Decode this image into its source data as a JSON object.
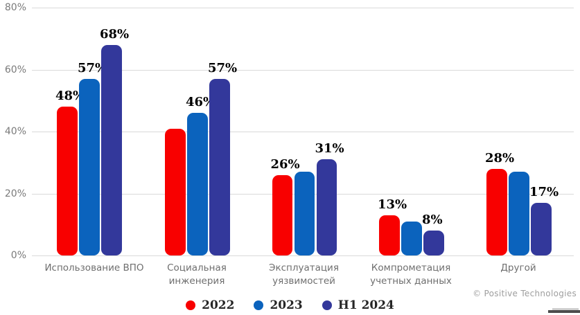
{
  "chart_data": {
    "type": "bar",
    "title": "",
    "categories": [
      "Использование ВПО",
      "Социальная инженерия",
      "Эксплуатация уязвимостей",
      "Компрометация учетных данных",
      "Другой"
    ],
    "category_lines": [
      [
        "Использование ВПО"
      ],
      [
        "Социальная",
        "инженерия"
      ],
      [
        "Эксплуатация",
        "уязвимостей"
      ],
      [
        "Компрометация",
        "учетных данных"
      ],
      [
        "Другой"
      ]
    ],
    "series": [
      {
        "name": "2022",
        "color": "#f80000",
        "values": [
          48,
          41,
          26,
          13,
          28
        ],
        "visible_labels": [
          "48%",
          "",
          "26%",
          "13%",
          "28%"
        ]
      },
      {
        "name": "2023",
        "color": "#0b63bd",
        "values": [
          57,
          46,
          27,
          11,
          27
        ],
        "visible_labels": [
          "57%",
          "46%",
          "",
          "",
          ""
        ]
      },
      {
        "name": "H1 2024",
        "color": "#33389b",
        "values": [
          68,
          57,
          31,
          8,
          17
        ],
        "visible_labels": [
          "68%",
          "57%",
          "31%",
          "8%",
          "17%"
        ]
      }
    ],
    "xlabel": "",
    "ylabel": "",
    "ylim": [
      0,
      80
    ],
    "yticks": [
      {
        "value": 0,
        "label": "0%"
      },
      {
        "value": 20,
        "label": "20%"
      },
      {
        "value": 40,
        "label": "40%"
      },
      {
        "value": 60,
        "label": "60%"
      },
      {
        "value": 80,
        "label": "80%"
      }
    ],
    "grid": true,
    "legend_position": "bottom"
  },
  "footer": {
    "copyright": "© Positive Technologies"
  },
  "colors": {
    "gridline": "#d9d9d9",
    "axis_text": "#6e6e6e",
    "tick_text": "#7a7a7a",
    "data_label": "#000000",
    "legend_text": "#262626",
    "copyright_text": "#9e9e9e"
  }
}
